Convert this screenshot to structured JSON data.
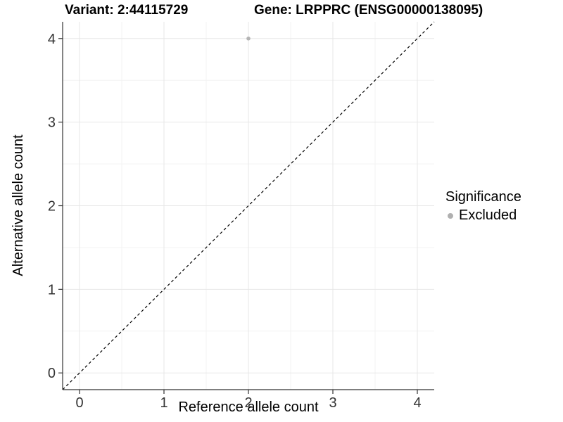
{
  "titles": {
    "variant": "Variant: 2:44115729",
    "gene": "Gene: LRPPRC (ENSG00000138095)"
  },
  "axes": {
    "x": {
      "label": "Reference allele count",
      "ticks": [
        0,
        1,
        2,
        3,
        4
      ],
      "range": [
        -0.2,
        4.2
      ]
    },
    "y": {
      "label": "Alternative allele count",
      "ticks": [
        0,
        1,
        2,
        3,
        4
      ],
      "range": [
        -0.2,
        4.2
      ]
    }
  },
  "legend": {
    "title": "Significance",
    "items": [
      {
        "label": "Excluded",
        "color": "#b0b0b0"
      }
    ]
  },
  "colors": {
    "background": "#ffffff",
    "grid_major": "#e7e7e7",
    "grid_minor": "#f3f3f3",
    "axis_line": "#333333",
    "tick_mark": "#333333",
    "tick_text": "#333333",
    "title_text": "#000000",
    "point": "#b4b4b4",
    "identity_line": "#000000"
  },
  "chart_data": {
    "type": "scatter",
    "title": "Variant: 2:44115729 — Gene: LRPPRC (ENSG00000138095)",
    "xlabel": "Reference allele count",
    "ylabel": "Alternative allele count",
    "xlim": [
      -0.2,
      4.2
    ],
    "ylim": [
      -0.2,
      4.2
    ],
    "x_ticks": [
      0,
      1,
      2,
      3,
      4
    ],
    "y_ticks": [
      0,
      1,
      2,
      3,
      4
    ],
    "grid": "on",
    "legend_position": "right",
    "series": [
      {
        "name": "Excluded",
        "color": "#b4b4b4",
        "points": [
          {
            "x": 2,
            "y": 4
          }
        ]
      }
    ],
    "reference_line": {
      "type": "identity",
      "from": [
        -0.2,
        -0.2
      ],
      "to": [
        4.2,
        4.2
      ],
      "style": "dashed",
      "color": "#000000"
    }
  }
}
